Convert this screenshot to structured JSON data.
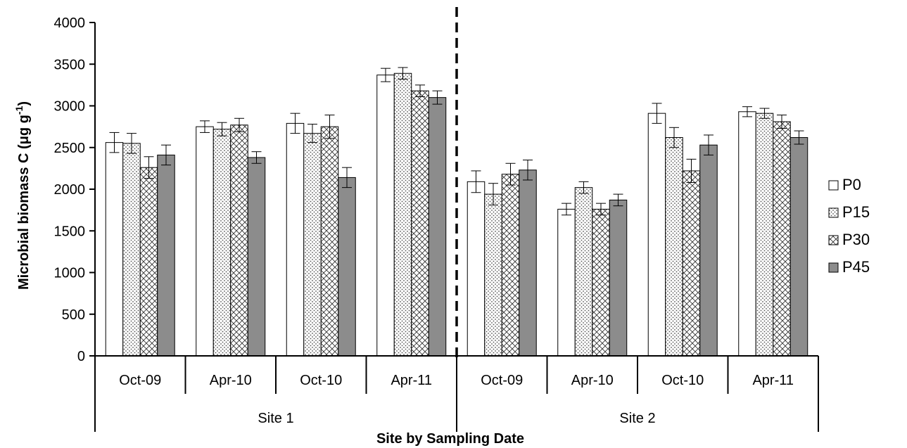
{
  "chart_data": {
    "type": "bar",
    "ylabel": "Microbial biomass C (μg g",
    "ylabel_superscript": "-1",
    "ylabel_close": ")",
    "xlabel": "Site by Sampling Date",
    "ylim": [
      0,
      4000
    ],
    "yticks": [
      0,
      500,
      1000,
      1500,
      2000,
      2500,
      3000,
      3500,
      4000
    ],
    "groups": [
      "Site 1",
      "Site 2"
    ],
    "categories": [
      "Oct-09",
      "Apr-10",
      "Oct-10",
      "Apr-11",
      "Oct-09",
      "Apr-10",
      "Oct-10",
      "Apr-11"
    ],
    "series": [
      {
        "name": "P0",
        "pattern": "white",
        "values": [
          2560,
          2750,
          2790,
          3370,
          2090,
          1760,
          2910,
          2930
        ],
        "errors": [
          120,
          70,
          120,
          80,
          130,
          70,
          120,
          60
        ]
      },
      {
        "name": "P15",
        "pattern": "dots",
        "values": [
          2550,
          2720,
          2670,
          3390,
          1940,
          2020,
          2620,
          2910
        ],
        "errors": [
          120,
          80,
          110,
          70,
          130,
          70,
          120,
          60
        ]
      },
      {
        "name": "P30",
        "pattern": "crosshatch",
        "values": [
          2260,
          2770,
          2750,
          3180,
          2180,
          1760,
          2220,
          2810
        ],
        "errors": [
          130,
          80,
          140,
          70,
          130,
          70,
          140,
          80
        ]
      },
      {
        "name": "P45",
        "pattern": "gray",
        "values": [
          2410,
          2380,
          2140,
          3100,
          2230,
          1870,
          2530,
          2620
        ],
        "errors": [
          120,
          70,
          120,
          80,
          120,
          70,
          120,
          80
        ]
      }
    ],
    "legend_position": "right",
    "divider": "dashed line between Site 1 and Site 2",
    "colors": {
      "P0": "#ffffff",
      "P15": "#e8e8e8",
      "P30": "#e8e8e8",
      "P45": "#8c8c8c",
      "outline": "#000000"
    }
  }
}
